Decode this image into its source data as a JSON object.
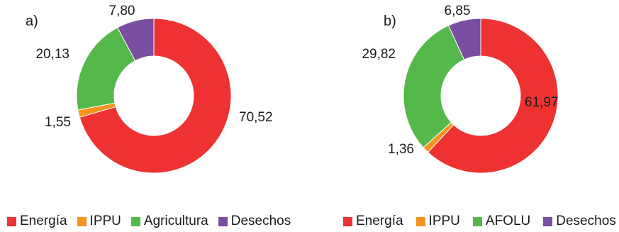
{
  "chart_data": [
    {
      "type": "pie",
      "variant": "donut",
      "panel_label": "a)",
      "categories": [
        "Energía",
        "IPPU",
        "Agricultura",
        "Desechos"
      ],
      "values": [
        70.52,
        1.55,
        20.13,
        7.8
      ],
      "value_labels": [
        "70,52",
        "1,55",
        "20,13",
        "7,80"
      ],
      "colors": [
        "#ee3131",
        "#f7941d",
        "#55b84a",
        "#7a4ea0"
      ],
      "legend_position": "bottom"
    },
    {
      "type": "pie",
      "variant": "donut",
      "panel_label": "b)",
      "categories": [
        "Energía",
        "IPPU",
        "AFOLU",
        "Desechos"
      ],
      "values": [
        61.97,
        1.36,
        29.82,
        6.85
      ],
      "value_labels": [
        "61,97",
        "1,36",
        "29,82",
        "6,85"
      ],
      "colors": [
        "#ee3131",
        "#f7941d",
        "#55b84a",
        "#7a4ea0"
      ],
      "legend_position": "bottom"
    }
  ]
}
